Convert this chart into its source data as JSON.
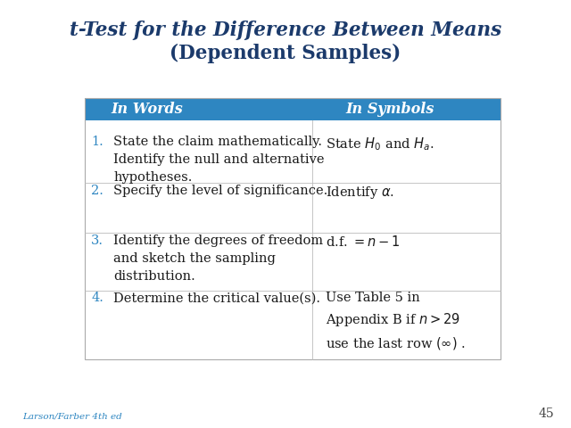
{
  "header_bg_color": "#2E86C1",
  "header_text_color": "#FFFFFF",
  "header_col1": "In Words",
  "header_col2": "In Symbols",
  "bg_color": "#FFFFFF",
  "number_color": "#2E86C1",
  "text_color": "#1a1a1a",
  "symbol_color": "#1a1a1a",
  "footer_text": "Larson/Farber 4th ed",
  "footer_color": "#2E86C1",
  "page_number": "45",
  "title_line1_italic": "t",
  "title_line1_rest": "-Test for the Difference Between Means",
  "title_line2": "(Dependent Samples)",
  "title_color": "#1B3A6B",
  "rows": [
    {
      "num": "1.",
      "words": "State the claim mathematically.\nIdentify the null and alternative\nhypotheses.",
      "sym_type": "math",
      "symbols": "State $H_0$ and $H_a$."
    },
    {
      "num": "2.",
      "words": "Specify the level of significance.",
      "sym_type": "math",
      "symbols": "Identify $\\alpha$."
    },
    {
      "num": "3.",
      "words": "Identify the degrees of freedom\nand sketch the sampling\ndistribution.",
      "sym_type": "math",
      "symbols": "d.f. $= n - 1$"
    },
    {
      "num": "4.",
      "words": "Determine the critical value(s).",
      "sym_type": "math",
      "symbols": "Use Table 5 in\nAppendix B if $n > 29$\nuse the last row $(∞)$ ."
    }
  ]
}
